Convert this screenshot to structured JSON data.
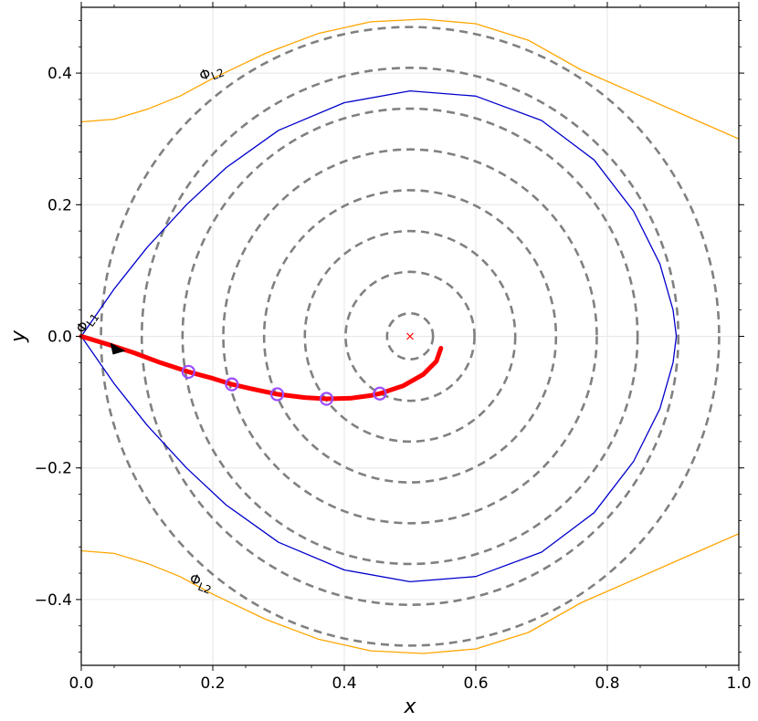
{
  "chart_data": {
    "type": "line",
    "title": "",
    "xlabel": "x",
    "ylabel": "y",
    "xlim": [
      0.0,
      1.0
    ],
    "ylim": [
      -0.5,
      0.5
    ],
    "x_ticks": [
      {
        "value": 0.0,
        "label": "0.0"
      },
      {
        "value": 0.2,
        "label": "0.2"
      },
      {
        "value": 0.4,
        "label": "0.4"
      },
      {
        "value": 0.6,
        "label": "0.6"
      },
      {
        "value": 0.8,
        "label": "0.8"
      },
      {
        "value": 1.0,
        "label": "1.0"
      }
    ],
    "y_ticks": [
      {
        "value": -0.4,
        "label": "−0.4"
      },
      {
        "value": -0.2,
        "label": "−0.2"
      },
      {
        "value": 0.0,
        "label": "0.0"
      },
      {
        "value": 0.2,
        "label": "0.2"
      },
      {
        "value": 0.4,
        "label": "0.4"
      }
    ],
    "grid": true,
    "legend": "none",
    "center": {
      "x": 0.5,
      "y": 0.0,
      "color": "#ff0000"
    },
    "spiral_rings": {
      "color": "#808080",
      "radii": [
        0.035,
        0.098,
        0.16,
        0.222,
        0.284,
        0.346,
        0.408,
        0.47
      ],
      "center": [
        0.5,
        0.0
      ]
    },
    "series": [
      {
        "id": "phi_L1",
        "color": "#0000cc",
        "points": [
          [
            0.0,
            0.0
          ],
          [
            0.05,
            0.072
          ],
          [
            0.1,
            0.135
          ],
          [
            0.16,
            0.2
          ],
          [
            0.22,
            0.256
          ],
          [
            0.3,
            0.313
          ],
          [
            0.4,
            0.355
          ],
          [
            0.5,
            0.373
          ],
          [
            0.6,
            0.365
          ],
          [
            0.7,
            0.328
          ],
          [
            0.78,
            0.268
          ],
          [
            0.84,
            0.19
          ],
          [
            0.88,
            0.11
          ],
          [
            0.9,
            0.04
          ],
          [
            0.905,
            0.0
          ],
          [
            0.9,
            -0.04
          ],
          [
            0.88,
            -0.11
          ],
          [
            0.84,
            -0.19
          ],
          [
            0.78,
            -0.268
          ],
          [
            0.7,
            -0.328
          ],
          [
            0.6,
            -0.365
          ],
          [
            0.5,
            -0.373
          ],
          [
            0.4,
            -0.355
          ],
          [
            0.3,
            -0.313
          ],
          [
            0.22,
            -0.256
          ],
          [
            0.16,
            -0.2
          ],
          [
            0.1,
            -0.135
          ],
          [
            0.05,
            -0.072
          ],
          [
            0.0,
            0.0
          ]
        ]
      },
      {
        "id": "phi_L2_upper",
        "color": "#ffa500",
        "points": [
          [
            0.0,
            0.326
          ],
          [
            0.05,
            0.33
          ],
          [
            0.1,
            0.345
          ],
          [
            0.15,
            0.365
          ],
          [
            0.2,
            0.392
          ],
          [
            0.28,
            0.43
          ],
          [
            0.36,
            0.46
          ],
          [
            0.44,
            0.478
          ],
          [
            0.52,
            0.482
          ],
          [
            0.6,
            0.475
          ],
          [
            0.68,
            0.45
          ],
          [
            0.76,
            0.405
          ],
          [
            0.84,
            0.37
          ],
          [
            0.92,
            0.335
          ],
          [
            1.0,
            0.3
          ]
        ]
      },
      {
        "id": "phi_L2_lower",
        "color": "#ffa500",
        "points": [
          [
            0.0,
            -0.326
          ],
          [
            0.05,
            -0.33
          ],
          [
            0.1,
            -0.345
          ],
          [
            0.15,
            -0.365
          ],
          [
            0.2,
            -0.392
          ],
          [
            0.28,
            -0.43
          ],
          [
            0.36,
            -0.46
          ],
          [
            0.44,
            -0.478
          ],
          [
            0.52,
            -0.482
          ],
          [
            0.6,
            -0.475
          ],
          [
            0.68,
            -0.45
          ],
          [
            0.76,
            -0.405
          ],
          [
            0.84,
            -0.37
          ],
          [
            0.92,
            -0.335
          ],
          [
            1.0,
            -0.3
          ]
        ]
      },
      {
        "id": "trajectory",
        "color": "#ff0000",
        "points": [
          [
            0.0,
            0.0
          ],
          [
            0.04,
            -0.012
          ],
          [
            0.08,
            -0.025
          ],
          [
            0.12,
            -0.04
          ],
          [
            0.163,
            -0.054
          ],
          [
            0.2,
            -0.064
          ],
          [
            0.229,
            -0.073
          ],
          [
            0.26,
            -0.08
          ],
          [
            0.298,
            -0.088
          ],
          [
            0.34,
            -0.093
          ],
          [
            0.373,
            -0.095
          ],
          [
            0.41,
            -0.094
          ],
          [
            0.44,
            -0.09
          ],
          [
            0.454,
            -0.087
          ],
          [
            0.49,
            -0.075
          ],
          [
            0.52,
            -0.058
          ],
          [
            0.54,
            -0.038
          ],
          [
            0.547,
            -0.018
          ]
        ]
      }
    ],
    "markers": {
      "color": "#9b4dff",
      "points": [
        [
          0.163,
          -0.054
        ],
        [
          0.229,
          -0.073
        ],
        [
          0.298,
          -0.088
        ],
        [
          0.373,
          -0.095
        ],
        [
          0.454,
          -0.087
        ]
      ]
    },
    "arrow": {
      "x": 0.055,
      "y": -0.018,
      "color": "#000000"
    },
    "contour_labels": [
      {
        "text": "Φ_L1",
        "x": 0.013,
        "y": 0.018,
        "angle": -55
      },
      {
        "text": "Φ_L2",
        "x": 0.2,
        "y": 0.395,
        "angle": -22
      },
      {
        "text": "Φ_L2",
        "x": 0.18,
        "y": -0.38,
        "angle": 22
      }
    ]
  }
}
